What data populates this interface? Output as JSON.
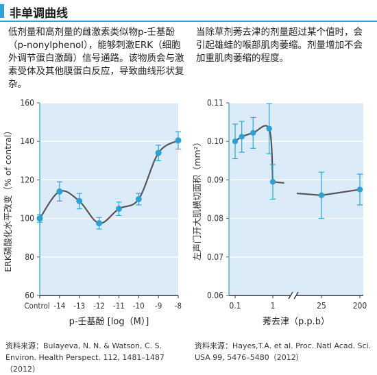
{
  "header": {
    "title": "非单调曲线"
  },
  "left_text": "低剂量和高剂量的雌激素类似物p-壬基酚（p-nonylphenol），能够刺激ERK（细胞外调节蛋白激酶）信号通路。该物质会与激素受体及其他膜蛋白反应，导致曲线形状复杂。",
  "right_text": "当除草剂莠去津的剂量超过某个值时，会引起雄蛙的喉部肌肉萎缩。剂量增加不会加重肌肉萎缩的程度。",
  "left_source": "资料来源：Bulayeva, N. N. & Watson, C. S. Environ. Health Perspect. 112, 1481–1487（2012）",
  "right_source": "资料来源：Hayes,T.A. et al. Proc. Natl Acad. Sci. USA 99, 5476–5480（2012）",
  "colors": {
    "accent": "#2aa3d4",
    "plot_bg": "#dcebf8",
    "line": "#555555",
    "point": "#2aa3d4",
    "errorbar": "#2aa3d4"
  },
  "chart_data": [
    {
      "type": "line",
      "xlabel": "p-壬基酚 [log（M）]",
      "ylabel": "ERK磷酸化水平改变（% of contral）",
      "x_tick_labels": [
        "Control",
        "-14",
        "-13",
        "-12",
        "-11",
        "-10",
        "-9",
        "-8"
      ],
      "y_ticks": [
        60,
        80,
        100,
        120,
        140,
        160
      ],
      "ylim": [
        60,
        160
      ],
      "grid": true,
      "points": [
        {
          "x": "Control",
          "y": 100,
          "err": 2
        },
        {
          "x": "-14",
          "y": 114,
          "err": 5
        },
        {
          "x": "-13",
          "y": 109,
          "err": 4
        },
        {
          "x": "-12",
          "y": 97.5,
          "err": 3
        },
        {
          "x": "-11",
          "y": 105,
          "err": 3.5
        },
        {
          "x": "-10",
          "y": 110,
          "err": 3
        },
        {
          "x": "-9",
          "y": 134,
          "err": 4
        },
        {
          "x": "-8",
          "y": 140.5,
          "err": 4.5
        }
      ]
    },
    {
      "type": "line",
      "xlabel": "莠去津（p.p.b）",
      "ylabel": "左声门开大肌横切面积（mm²）",
      "x_tick_labels": [
        "0.1",
        "1",
        "25",
        "200"
      ],
      "x_axis_break": true,
      "y_ticks": [
        0.06,
        0.07,
        0.08,
        0.09,
        0.1,
        0.11
      ],
      "ylim": [
        0.06,
        0.11
      ],
      "grid": true,
      "points": [
        {
          "x": 0.1,
          "y": 0.1,
          "err": 0.0045
        },
        {
          "x": 0.15,
          "y": 0.1012,
          "err": 0.004
        },
        {
          "x": 0.3,
          "y": 0.1022,
          "err": 0.004
        },
        {
          "x": 0.8,
          "y": 0.1033,
          "err": 0.0065
        },
        {
          "x": 1.0,
          "y": 0.0895,
          "err": 0.0045
        },
        {
          "x": 2.0,
          "y": 0.0892,
          "err": 0
        },
        {
          "x": 25,
          "y": 0.0865,
          "err": 0
        },
        {
          "x": 25,
          "y": 0.086,
          "err": 0.006
        },
        {
          "x": 200,
          "y": 0.0875,
          "err": 0.004
        }
      ]
    }
  ]
}
